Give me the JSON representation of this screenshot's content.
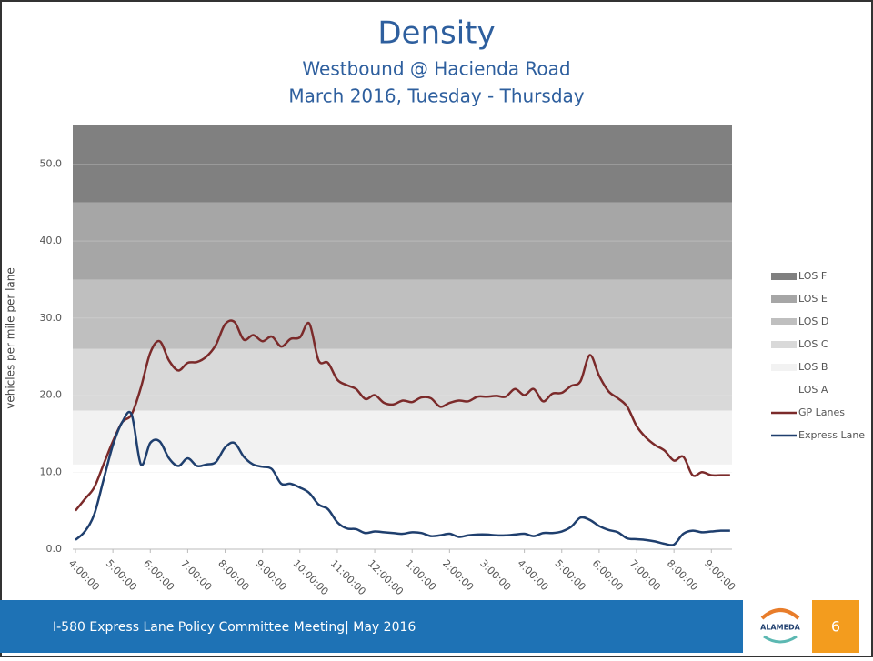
{
  "chart_data": {
    "type": "line",
    "title": "Density",
    "subtitle": [
      "Westbound @ Hacienda Road",
      "March 2016, Tuesday - Thursday"
    ],
    "y_label": "vehicles per mile per lane",
    "ylim": [
      0,
      55
    ],
    "yticks": [
      {
        "value": 0,
        "label": "0.0"
      },
      {
        "value": 10,
        "label": "10.0"
      },
      {
        "value": 20,
        "label": "20.0"
      },
      {
        "value": 30,
        "label": "30.0"
      },
      {
        "value": 40,
        "label": "40.0"
      },
      {
        "value": 50,
        "label": "50.0"
      }
    ],
    "bands": [
      {
        "name": "LOS A",
        "color": "#ffffff",
        "value": 11
      },
      {
        "name": "LOS B",
        "color": "#f2f2f2",
        "value": 7
      },
      {
        "name": "LOS C",
        "color": "#d9d9d9",
        "value": 8
      },
      {
        "name": "LOS D",
        "color": "#bfbfbf",
        "value": 9
      },
      {
        "name": "LOS E",
        "color": "#a6a6a6",
        "value": 10
      },
      {
        "name": "LOS F",
        "color": "#808080",
        "value": 10
      }
    ],
    "categories": [
      "4:00:00",
      null,
      null,
      null,
      "5:00:00",
      null,
      null,
      null,
      "6:00:00",
      null,
      null,
      null,
      "7:00:00",
      null,
      null,
      null,
      "8:00:00",
      null,
      null,
      null,
      "9:00:00",
      null,
      null,
      null,
      "10:00:00",
      null,
      null,
      null,
      "11:00:00",
      null,
      null,
      null,
      "12:00:00",
      null,
      null,
      null,
      "1:00:00",
      null,
      null,
      null,
      "2:00:00",
      null,
      null,
      null,
      "3:00:00",
      null,
      null,
      null,
      "4:00:00",
      null,
      null,
      null,
      "5:00:00",
      null,
      null,
      null,
      "6:00:00",
      null,
      null,
      null,
      "7:00:00",
      null,
      null,
      null,
      "8:00:00",
      null,
      null,
      null,
      "9:00:00",
      null,
      null
    ],
    "series": [
      {
        "name": "GP Lanes",
        "color": "#7b2a2a",
        "values": [
          5.0,
          6.5,
          8,
          11,
          14,
          16.5,
          17.5,
          21,
          25.5,
          27,
          24.5,
          23.2,
          24.2,
          24.3,
          25,
          26.5,
          29.2,
          29.5,
          27.2,
          27.8,
          27,
          27.6,
          26.3,
          27.3,
          27.5,
          29.3,
          24.5,
          24.2,
          22,
          21.3,
          20.8,
          19.5,
          20,
          19,
          18.8,
          19.3,
          19.1,
          19.7,
          19.6,
          18.5,
          19,
          19.3,
          19.2,
          19.8,
          19.8,
          19.9,
          19.8,
          20.8,
          20,
          20.8,
          19.2,
          20.2,
          20.3,
          21.2,
          21.8,
          25.2,
          22.5,
          20.5,
          19.6,
          18.5,
          16,
          14.5,
          13.5,
          12.8,
          11.5,
          12,
          9.6,
          10,
          9.6,
          9.6,
          9.6
        ]
      },
      {
        "name": "Express Lane",
        "color": "#1f3f6e",
        "values": [
          1.2,
          2.3,
          4.5,
          9,
          13.5,
          16.5,
          17.5,
          11,
          13.8,
          14,
          11.8,
          10.8,
          11.8,
          10.8,
          11,
          11.3,
          13.2,
          13.8,
          12,
          11,
          10.7,
          10.4,
          8.5,
          8.5,
          8,
          7.3,
          5.8,
          5.2,
          3.5,
          2.7,
          2.6,
          2.1,
          2.3,
          2.2,
          2.1,
          2.0,
          2.2,
          2.1,
          1.7,
          1.8,
          2.0,
          1.6,
          1.8,
          1.9,
          1.9,
          1.8,
          1.8,
          1.9,
          2.0,
          1.7,
          2.1,
          2.1,
          2.3,
          2.9,
          4.1,
          3.8,
          3.0,
          2.5,
          2.2,
          1.4,
          1.3,
          1.2,
          1.0,
          0.7,
          0.6,
          2.0,
          2.4,
          2.2,
          2.3,
          2.4,
          2.4
        ]
      }
    ],
    "legend": "right"
  },
  "footer": {
    "text": "I-580 Express Lane Policy Committee Meeting| May 2016",
    "logo": "ALAMEDA",
    "page": "6"
  }
}
